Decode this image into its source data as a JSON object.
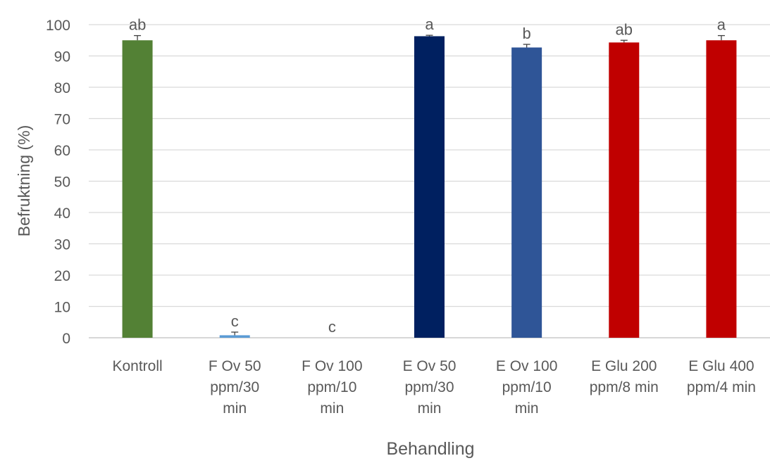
{
  "chart_data": {
    "type": "bar",
    "title": "",
    "xlabel": "Behandling",
    "ylabel": "Befruktning (%)",
    "ylim": [
      0,
      100
    ],
    "yticks": [
      0,
      10,
      20,
      30,
      40,
      50,
      60,
      70,
      80,
      90,
      100
    ],
    "grid": true,
    "legend": "none",
    "categories": [
      [
        "Kontroll"
      ],
      [
        "F Ov 50",
        "ppm/30",
        "min"
      ],
      [
        "F Ov 100",
        "ppm/10",
        "min"
      ],
      [
        "E Ov 50",
        "ppm/30",
        "min"
      ],
      [
        "E Ov 100",
        "ppm/10",
        "min"
      ],
      [
        "E Glu 200",
        "ppm/8 min"
      ],
      [
        "E Glu 400",
        "ppm/4 min"
      ]
    ],
    "values": [
      95.0,
      0.8,
      0.0,
      96.3,
      92.7,
      94.3,
      95.0
    ],
    "errors": [
      1.5,
      1.0,
      0.0,
      0.3,
      1.0,
      0.7,
      1.5
    ],
    "letters": [
      "ab",
      "c",
      "c",
      "a",
      "b",
      "ab",
      "a"
    ],
    "colors": [
      "#538135",
      "#5b9bd5",
      "#5b9bd5",
      "#002060",
      "#2f5597",
      "#c00000",
      "#c00000"
    ]
  }
}
